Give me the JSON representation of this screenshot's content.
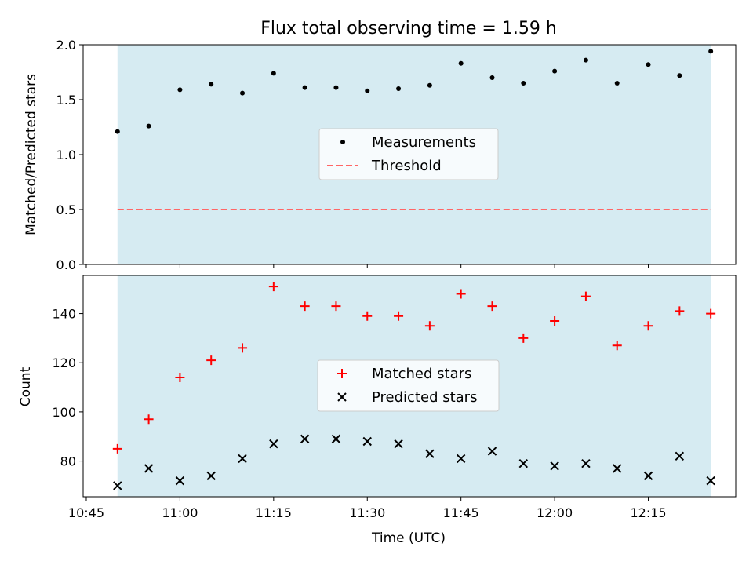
{
  "chart_data": {
    "title": "Flux total observing time = 1.59 h",
    "xlabel": "Time (UTC)",
    "x_ticks": [
      "10:45",
      "11:00",
      "11:15",
      "11:30",
      "11:45",
      "12:00",
      "12:15"
    ],
    "x_tick_minutes": [
      0,
      15,
      30,
      45,
      60,
      75,
      90
    ],
    "x_range_minutes": [
      -0.5,
      104
    ],
    "shaded_span_minutes": [
      5,
      100
    ],
    "colors": {
      "shade": "#add8e6",
      "threshold": "#ff6666",
      "matched": "#ff0000",
      "predicted": "#000000",
      "measurement": "#000000"
    },
    "panels": [
      {
        "type": "scatter",
        "ylabel": "Matched/Predicted stars",
        "ylim": [
          0,
          2.0
        ],
        "y_ticks": [
          0.0,
          0.5,
          1.0,
          1.5,
          2.0
        ],
        "y_tick_labels": [
          "0.0",
          "0.5",
          "1.0",
          "1.5",
          "2.0"
        ],
        "legend": {
          "placement": "center",
          "entries": [
            "Measurements",
            "Threshold"
          ]
        },
        "series": [
          {
            "name": "Measurements",
            "marker": "dot",
            "x": [
              "10:50",
              "10:55",
              "11:00",
              "11:05",
              "11:10",
              "11:15",
              "11:20",
              "11:25",
              "11:30",
              "11:35",
              "11:40",
              "11:45",
              "11:50",
              "11:55",
              "12:00",
              "12:05",
              "12:10",
              "12:15",
              "12:20",
              "12:25"
            ],
            "y": [
              1.21,
              1.26,
              1.59,
              1.64,
              1.56,
              1.74,
              1.61,
              1.61,
              1.58,
              1.6,
              1.63,
              1.83,
              1.7,
              1.65,
              1.76,
              1.86,
              1.65,
              1.82,
              1.72,
              1.94
            ]
          },
          {
            "name": "Threshold",
            "line": "dashed",
            "y": 0.5
          }
        ]
      },
      {
        "type": "scatter",
        "ylabel": "Count",
        "ylim": [
          65.5,
          155.5
        ],
        "y_ticks": [
          80,
          100,
          120,
          140
        ],
        "y_tick_labels": [
          "80",
          "100",
          "120",
          "140"
        ],
        "legend": {
          "placement": "center",
          "entries": [
            "Matched stars",
            "Predicted stars"
          ]
        },
        "series": [
          {
            "name": "Matched stars",
            "marker": "plus",
            "x": [
              "10:50",
              "10:55",
              "11:00",
              "11:05",
              "11:10",
              "11:15",
              "11:20",
              "11:25",
              "11:30",
              "11:35",
              "11:40",
              "11:45",
              "11:50",
              "11:55",
              "12:00",
              "12:05",
              "12:10",
              "12:15",
              "12:20",
              "12:25"
            ],
            "y": [
              85,
              97,
              114,
              121,
              126,
              151,
              143,
              143,
              139,
              139,
              135,
              148,
              143,
              130,
              137,
              147,
              127,
              135,
              141,
              140
            ]
          },
          {
            "name": "Predicted stars",
            "marker": "x",
            "x": [
              "10:50",
              "10:55",
              "11:00",
              "11:05",
              "11:10",
              "11:15",
              "11:20",
              "11:25",
              "11:30",
              "11:35",
              "11:40",
              "11:45",
              "11:50",
              "11:55",
              "12:00",
              "12:05",
              "12:10",
              "12:15",
              "12:20",
              "12:25"
            ],
            "y": [
              70,
              77,
              72,
              74,
              81,
              87,
              89,
              89,
              88,
              87,
              83,
              81,
              84,
              79,
              78,
              79,
              77,
              74,
              82,
              72
            ]
          }
        ]
      }
    ]
  }
}
